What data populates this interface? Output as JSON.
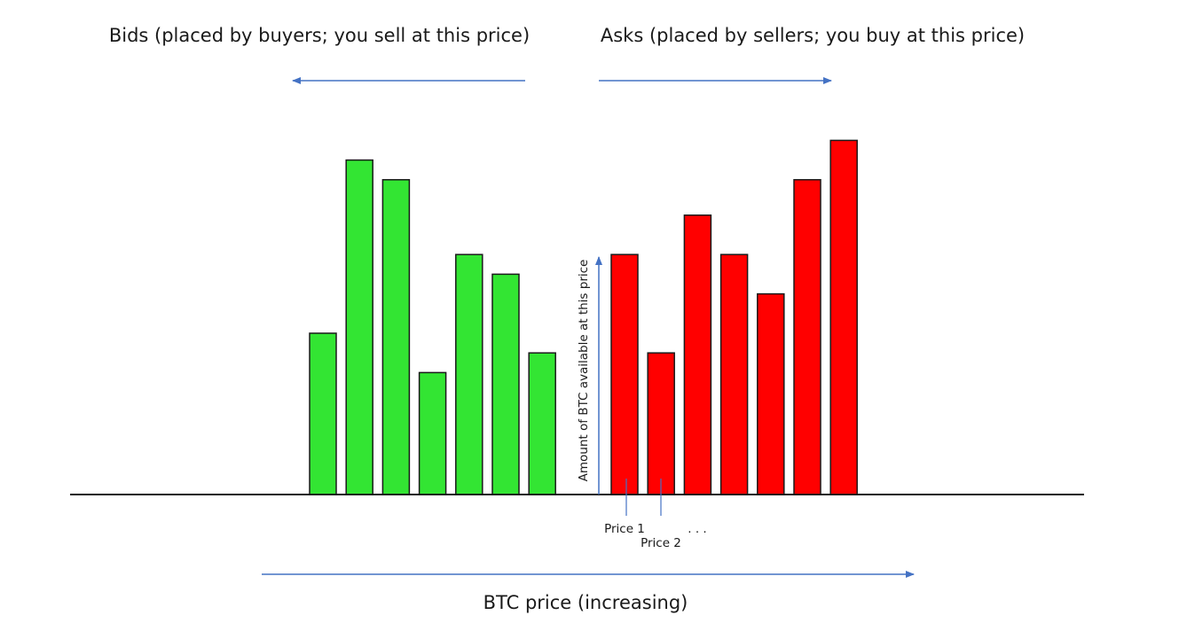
{
  "labels": {
    "bids_heading": "Bids (placed by buyers; you sell at this price)",
    "asks_heading": "Asks (placed by sellers; you buy at this price)",
    "vertical_axis": "Amount of BTC available at this price",
    "price_1": "Price 1",
    "price_2": "Price 2",
    "ellipsis": ". . .",
    "x_axis": "BTC price (increasing)"
  },
  "colors": {
    "bid": "#33e533",
    "ask": "#ff0000",
    "arrow": "#4472c4",
    "outline": "#1a1a1a"
  },
  "chart_data": {
    "type": "bar",
    "title": "",
    "xlabel": "BTC price (increasing)",
    "ylabel": "Amount of BTC available at this price",
    "series": [
      {
        "name": "Bids",
        "values": [
          41,
          85,
          80,
          31,
          61,
          56,
          36
        ]
      },
      {
        "name": "Asks",
        "values": [
          61,
          36,
          71,
          61,
          51,
          80,
          90
        ]
      }
    ],
    "ylim": [
      0,
      100
    ],
    "grid": false
  }
}
